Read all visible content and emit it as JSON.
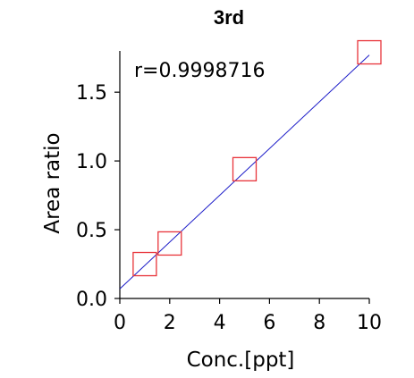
{
  "chart_data": {
    "type": "scatter",
    "title": "3rd",
    "xlabel": "Conc.[ppt]",
    "ylabel": "Area ratio",
    "xlim": [
      0,
      10
    ],
    "ylim": [
      0,
      1.8
    ],
    "xticks": [
      "0",
      "2",
      "4",
      "6",
      "8",
      "10"
    ],
    "yticks": [
      "0.0",
      "0.5",
      "1.0",
      "1.5"
    ],
    "annotation": "r=0.9998716",
    "points": [
      {
        "x": 1.0,
        "y": 0.25
      },
      {
        "x": 2.0,
        "y": 0.4
      },
      {
        "x": 5.0,
        "y": 0.94
      },
      {
        "x": 10.0,
        "y": 1.79
      }
    ],
    "fit_line": {
      "x": [
        0,
        10
      ],
      "y": [
        0.07,
        1.77
      ]
    },
    "colors": {
      "marker": "#e8343a",
      "fit_line": "#1c1cc8",
      "axis": "#000000"
    }
  }
}
